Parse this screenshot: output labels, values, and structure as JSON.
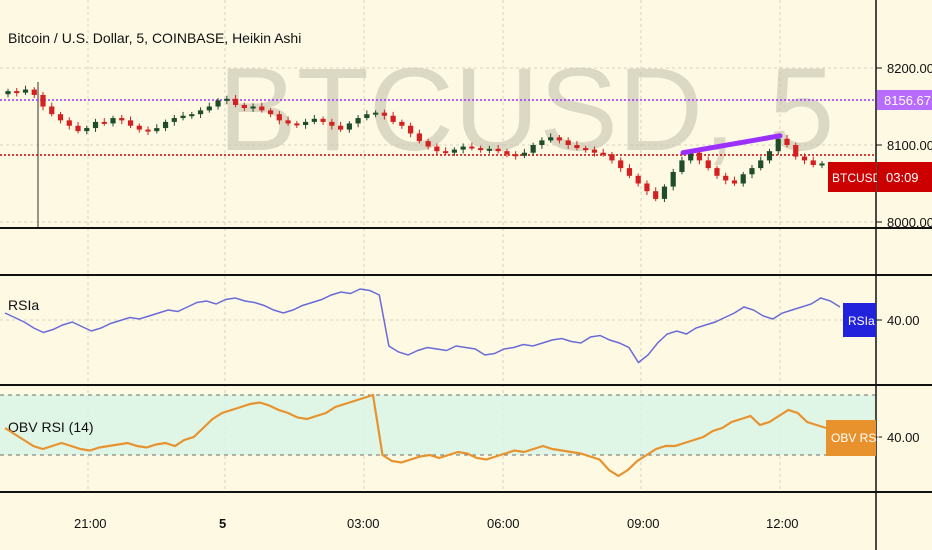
{
  "header": {
    "symbol_title": "Bitcoin / U.S. Dollar, 5, COINBASE, Heikin Ashi",
    "watermark": "BTCUSD, 5"
  },
  "price_axis": {
    "labels": [
      "8200.00",
      "8100.00",
      "8000.00"
    ],
    "marker_8156": "8156.67",
    "badge_symbol": "BTCUSD",
    "badge_timer": "03:09"
  },
  "time_axis": {
    "labels": [
      "21:00",
      "5",
      "03:00",
      "06:00",
      "09:00",
      "12:00"
    ]
  },
  "rsia_pane": {
    "title": "RSIa",
    "badge": "RSIa",
    "axis_label": "40.00"
  },
  "obv_pane": {
    "title": "OBV RSI (14)",
    "badge": "OBV RSI",
    "axis_label": "40.00"
  },
  "colors": {
    "background": "#fdf9e3",
    "bull_candle": "#1f4d2a",
    "bear_candle": "#d32020",
    "rsia_line": "#6a6ad8",
    "obv_line": "#e8922e",
    "purple_level": "#9b30ff",
    "red_level": "#cc0000",
    "rsia_badge": "#2222dd",
    "obv_badge": "#e8922e",
    "btc_badge": "#cc0000",
    "band_fill": "#d9f5e6"
  },
  "chart_data": [
    {
      "type": "candlestick",
      "title": "Bitcoin / U.S. Dollar, 5, COINBASE, Heikin Ashi",
      "x_ticks": [
        "21:00",
        "5",
        "03:00",
        "06:00",
        "09:00",
        "12:00"
      ],
      "ylim": [
        8000,
        8200
      ],
      "y_ticks": [
        8000,
        8100,
        8200
      ],
      "horizontal_levels": [
        8156.67,
        8085
      ],
      "last_price_label": "BTCUSD",
      "path_close": [
        8170,
        8168,
        8172,
        8165,
        8150,
        8140,
        8132,
        8125,
        8118,
        8122,
        8130,
        8128,
        8135,
        8132,
        8125,
        8120,
        8118,
        8122,
        8130,
        8135,
        8138,
        8140,
        8145,
        8150,
        8158,
        8160,
        8152,
        8148,
        8150,
        8145,
        8140,
        8132,
        8128,
        8126,
        8130,
        8134,
        8130,
        8125,
        8120,
        8128,
        8135,
        8140,
        8142,
        8138,
        8130,
        8125,
        8115,
        8105,
        8098,
        8092,
        8090,
        8094,
        8098,
        8096,
        8094,
        8095,
        8092,
        8088,
        8086,
        8090,
        8100,
        8106,
        8110,
        8106,
        8100,
        8096,
        8094,
        8090,
        8088,
        8080,
        8070,
        8060,
        8050,
        8040,
        8030,
        8046,
        8065,
        8080,
        8090,
        8080,
        8070,
        8060,
        8054,
        8050,
        8062,
        8070,
        8080,
        8092,
        8108,
        8100,
        8085,
        8080,
        8074,
        8076
      ],
      "trendline": {
        "from": 8090,
        "to": 8112
      }
    },
    {
      "type": "line",
      "series_name": "RSIa",
      "reference_value": 40,
      "values": [
        58,
        55,
        52,
        48,
        45,
        47,
        50,
        52,
        49,
        46,
        48,
        51,
        53,
        55,
        54,
        56,
        58,
        60,
        59,
        62,
        65,
        66,
        64,
        67,
        68,
        66,
        65,
        63,
        60,
        58,
        60,
        63,
        65,
        67,
        70,
        72,
        71,
        74,
        73,
        70,
        36,
        32,
        30,
        33,
        35,
        34,
        33,
        36,
        35,
        34,
        30,
        31,
        34,
        35,
        37,
        36,
        38,
        40,
        41,
        39,
        38,
        42,
        43,
        40,
        38,
        35,
        25,
        30,
        38,
        44,
        46,
        44,
        48,
        50,
        52,
        55,
        58,
        62,
        60,
        56,
        54,
        58,
        60,
        62,
        64,
        68,
        66,
        62
      ]
    },
    {
      "type": "line",
      "series_name": "OBV RSI (14)",
      "reference_value": 40,
      "band": [
        30,
        70
      ],
      "values": [
        48,
        44,
        40,
        36,
        34,
        36,
        38,
        36,
        34,
        33,
        35,
        36,
        37,
        38,
        36,
        35,
        37,
        38,
        36,
        40,
        42,
        48,
        54,
        58,
        60,
        62,
        64,
        65,
        63,
        60,
        58,
        55,
        54,
        56,
        58,
        62,
        64,
        66,
        68,
        70,
        30,
        26,
        25,
        27,
        29,
        30,
        28,
        30,
        32,
        31,
        28,
        27,
        29,
        31,
        33,
        32,
        34,
        36,
        34,
        33,
        32,
        31,
        29,
        27,
        20,
        16,
        20,
        26,
        30,
        34,
        36,
        36,
        38,
        40,
        42,
        46,
        48,
        52,
        54,
        56,
        50,
        52,
        56,
        60,
        58,
        52,
        50,
        48
      ]
    }
  ]
}
